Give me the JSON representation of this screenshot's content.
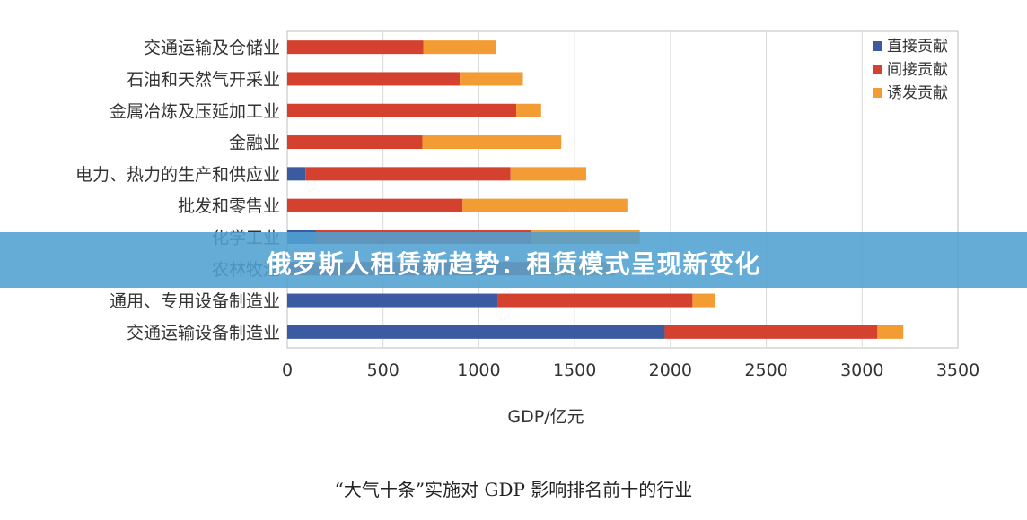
{
  "chart_data": {
    "type": "bar",
    "orientation": "horizontal",
    "stacked": true,
    "categories": [
      "交通运输及仓储业",
      "石油和天然气开采业",
      "金属冶炼及压延加工业",
      "金融业",
      "电力、热力的生产和供应业",
      "批发和零售业",
      "化学工业",
      "农林牧渔",
      "通用、专用设备制造业",
      "交通运输设备制造业"
    ],
    "series": [
      {
        "name": "直接贡献",
        "color": "#3b5aa0",
        "values": [
          0,
          0,
          0,
          0,
          95,
          0,
          150,
          0,
          1100,
          1970
        ]
      },
      {
        "name": "间接贡献",
        "color": "#d5412f",
        "values": [
          710,
          900,
          1195,
          705,
          1070,
          915,
          1120,
          1290,
          1015,
          1110
        ]
      },
      {
        "name": "诱发贡献",
        "color": "#f39c33",
        "values": [
          380,
          330,
          130,
          725,
          395,
          860,
          570,
          420,
          120,
          135
        ]
      }
    ],
    "xlabel": "GDP/亿元",
    "ylabel": "",
    "xlim": [
      0,
      3500
    ],
    "xticks": [
      0,
      500,
      1000,
      1500,
      2000,
      2500,
      3000,
      3500
    ],
    "grid": true,
    "legend_position": "top-right"
  },
  "caption": "“大气十条”实施对 GDP 影响排名前十的行业",
  "banner": {
    "text": "俄罗斯人租赁新趋势：租赁模式呈现新变化",
    "color": "#50a0d2"
  }
}
